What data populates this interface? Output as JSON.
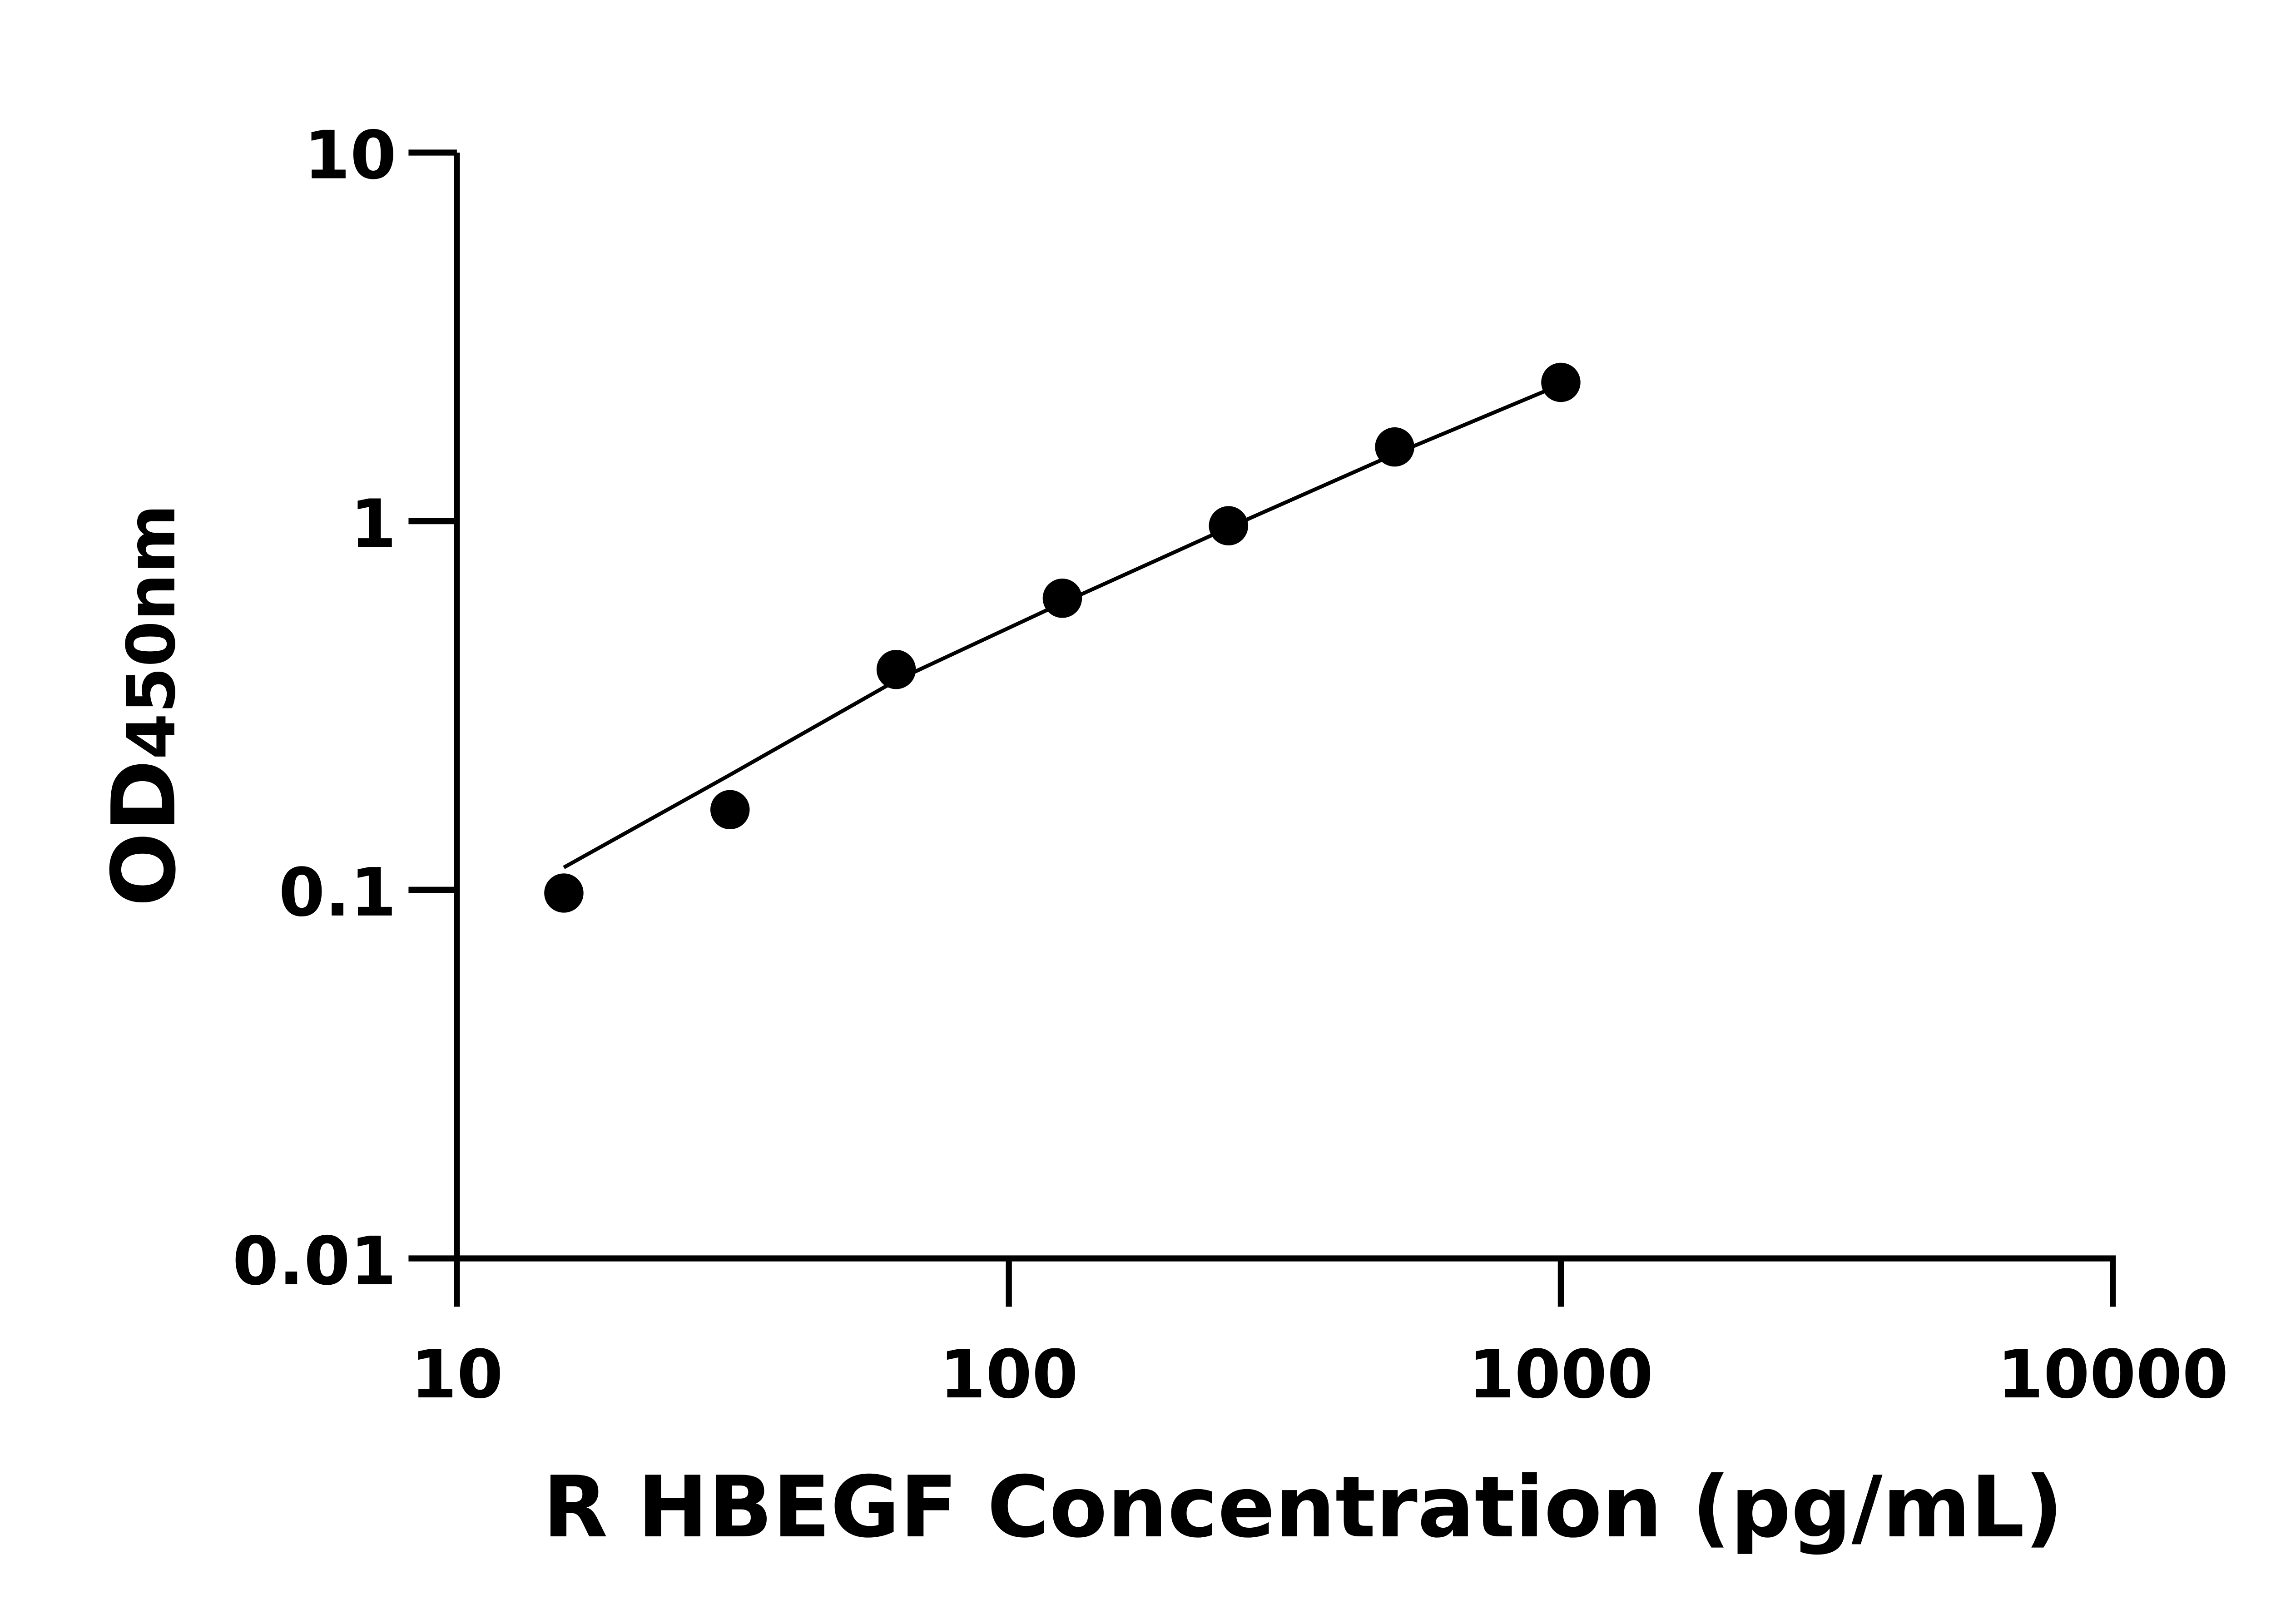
{
  "chart_data": {
    "type": "scatter",
    "title": "",
    "xlabel": "R HBEGF Concentration (pg/mL)",
    "ylabel": "OD450nm",
    "ylabel_main": "OD",
    "ylabel_sub": "450nm",
    "xscale": "log",
    "yscale": "log",
    "xlim": [
      10,
      10000
    ],
    "ylim": [
      0.01,
      10
    ],
    "xticks": [
      "10",
      "100",
      "1000",
      "10000"
    ],
    "yticks": [
      "0.01",
      "0.1",
      "1",
      "10"
    ],
    "grid": false,
    "x": [
      15.625,
      31.25,
      62.5,
      125,
      250,
      500,
      1000
    ],
    "y": [
      0.098,
      0.165,
      0.396,
      0.618,
      0.972,
      1.59,
      2.38
    ],
    "fit_y": [
      0.115,
      0.205,
      0.37,
      0.6,
      0.96,
      1.52,
      2.35
    ],
    "colors": {
      "marker": "#000000",
      "line": "#000000"
    }
  }
}
